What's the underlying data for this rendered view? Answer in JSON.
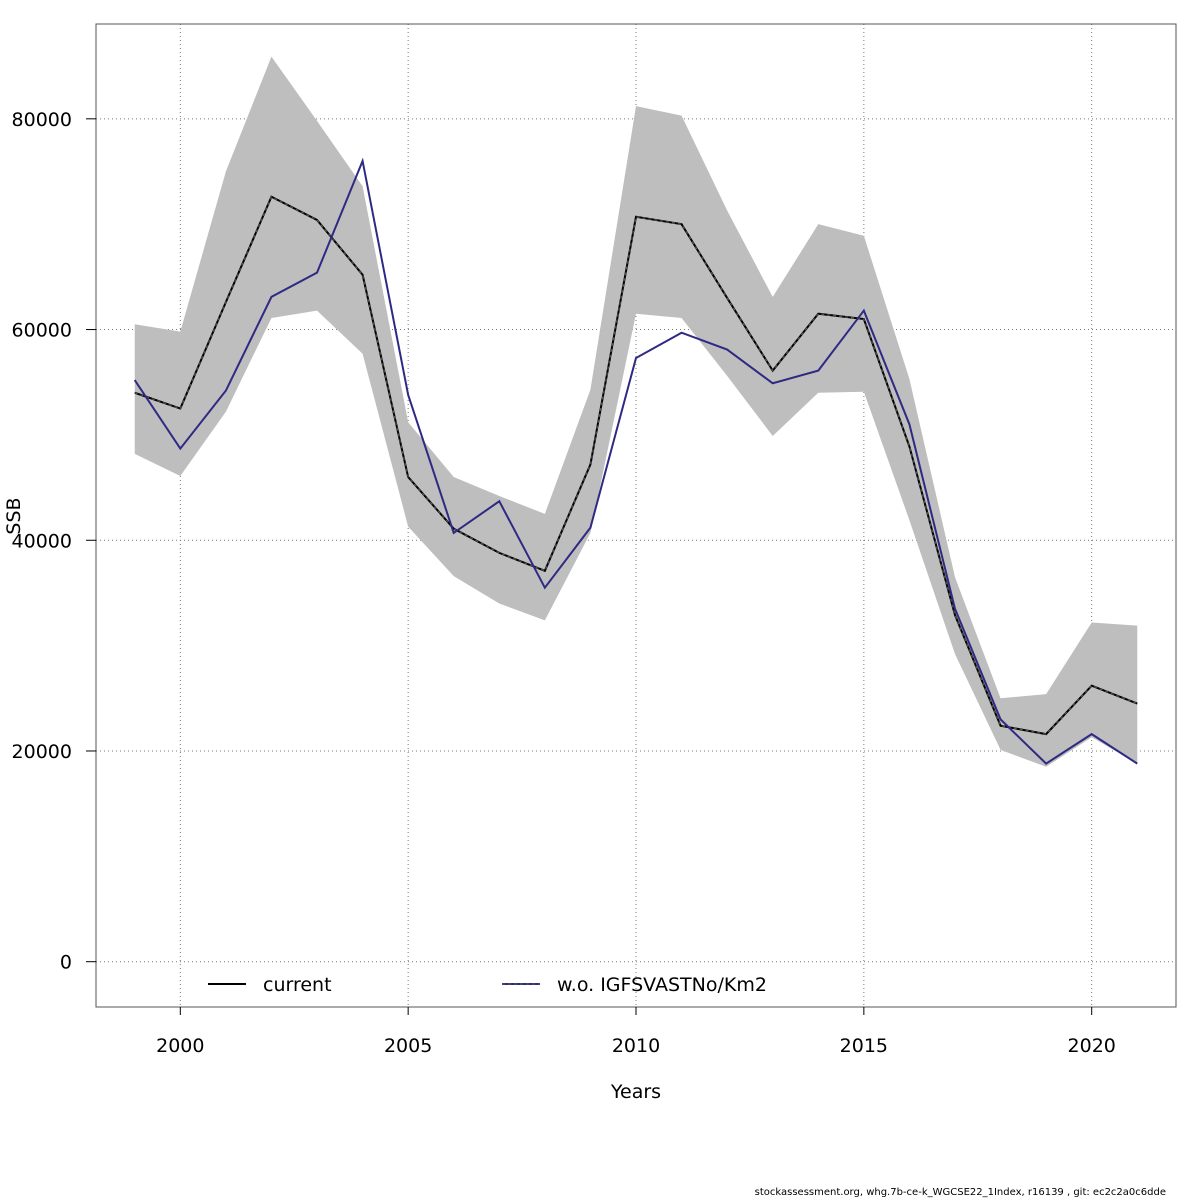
{
  "chart_data": {
    "type": "line",
    "xlabel": "Years",
    "ylabel": "SSB",
    "xlim": [
      1998.15,
      2021.85
    ],
    "ylim": [
      -4300,
      89000
    ],
    "x_ticks": [
      2000,
      2005,
      2010,
      2015,
      2020
    ],
    "y_ticks": [
      0,
      20000,
      40000,
      60000,
      80000
    ],
    "grid": true,
    "legend_position": "bottom",
    "x": [
      1999,
      2000,
      2001,
      2002,
      2003,
      2004,
      2005,
      2006,
      2007,
      2008,
      2009,
      2010,
      2011,
      2012,
      2013,
      2014,
      2015,
      2016,
      2017,
      2018,
      2019,
      2020,
      2021
    ],
    "band": {
      "upper": [
        60500,
        59800,
        75000,
        85900,
        79800,
        73600,
        51200,
        46000,
        44200,
        42500,
        54300,
        81200,
        80300,
        71300,
        63100,
        70000,
        68900,
        55300,
        36500,
        25000,
        25400,
        32200,
        31900
      ],
      "lower": [
        48200,
        46100,
        52200,
        61100,
        61800,
        57700,
        41300,
        36600,
        34000,
        32400,
        40700,
        61500,
        61100,
        55600,
        49900,
        54000,
        54100,
        41900,
        29200,
        20100,
        18500,
        21300,
        18800
      ]
    },
    "series": [
      {
        "name": "current",
        "values": [
          54000,
          52500,
          62600,
          72600,
          70400,
          65200,
          46000,
          41100,
          38800,
          37100,
          47200,
          70700,
          70000,
          63000,
          56100,
          61500,
          61000,
          48900,
          32900,
          22400,
          21600,
          26200,
          24500
        ]
      },
      {
        "name": "w.o. IGFSVASTNo/Km2",
        "values": [
          55200,
          48700,
          54200,
          63100,
          65400,
          76000,
          53800,
          40700,
          43700,
          35500,
          41200,
          57300,
          59700,
          58100,
          54900,
          56100,
          61800,
          51000,
          33500,
          23000,
          18800,
          21600,
          18800
        ]
      }
    ],
    "colors": {
      "band": "#bebebe",
      "current": "#000000",
      "current_dash": "#555555",
      "alternative": "#2e2a84"
    }
  },
  "footer": "stockassessment.org, whg.7b-ce-k_WGCSE22_1Index, r16139 , git: ec2c2a0c6dde"
}
